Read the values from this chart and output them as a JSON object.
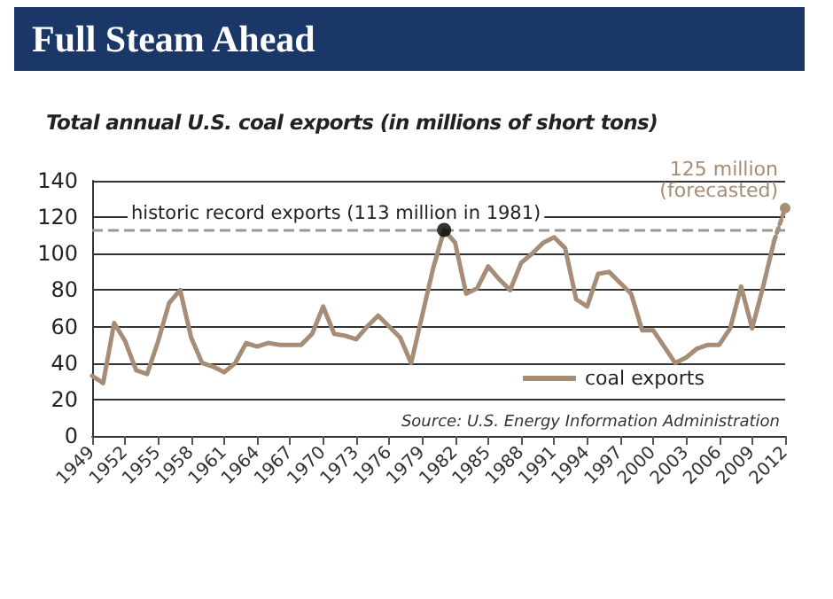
{
  "chart_data": {
    "type": "line",
    "title": "Full Steam Ahead",
    "subtitle": "Total annual U.S. coal exports (in millions of short tons)",
    "x": [
      1949,
      1950,
      1951,
      1952,
      1953,
      1954,
      1955,
      1956,
      1957,
      1958,
      1959,
      1960,
      1961,
      1962,
      1963,
      1964,
      1965,
      1966,
      1967,
      1968,
      1969,
      1970,
      1971,
      1972,
      1973,
      1974,
      1975,
      1976,
      1977,
      1978,
      1979,
      1980,
      1981,
      1982,
      1983,
      1984,
      1985,
      1986,
      1987,
      1988,
      1989,
      1990,
      1991,
      1992,
      1993,
      1994,
      1995,
      1996,
      1997,
      1998,
      1999,
      2000,
      2001,
      2002,
      2003,
      2004,
      2005,
      2006,
      2007,
      2008,
      2009,
      2010,
      2011
    ],
    "series": [
      {
        "name": "coal exports",
        "color": "#a68d77",
        "line_style": "solid",
        "marker": "none",
        "values": [
          33,
          29,
          62,
          52,
          36,
          34,
          52,
          73,
          80,
          54,
          40,
          38,
          35,
          40,
          51,
          49,
          51,
          50,
          50,
          50,
          56,
          71,
          56,
          55,
          53,
          60,
          66,
          60,
          54,
          40,
          66,
          92,
          113,
          106,
          78,
          81,
          93,
          86,
          80,
          95,
          100,
          106,
          109,
          103,
          75,
          71,
          89,
          90,
          84,
          78,
          58,
          58,
          49,
          40,
          43,
          48,
          50,
          50,
          59,
          82,
          59,
          82,
          107
        ]
      },
      {
        "type": "line",
        "color": "#a68d77",
        "line_style": "dotted",
        "marker": "circle",
        "x": [
          2011,
          2012
        ],
        "values": [
          107,
          125
        ]
      },
      {
        "type": "scatter",
        "color": "#000000",
        "marker": "circle",
        "x": [
          1981
        ],
        "values": [
          113
        ]
      }
    ],
    "xlim": [
      1949,
      2012
    ],
    "xticks": [
      1949,
      1952,
      1955,
      1958,
      1961,
      1964,
      1967,
      1970,
      1973,
      1976,
      1979,
      1982,
      1985,
      1988,
      1991,
      1994,
      1997,
      2000,
      2003,
      2006,
      2009,
      2012
    ],
    "ylim": [
      0,
      140
    ],
    "yticks": [
      0,
      20,
      40,
      60,
      80,
      100,
      120,
      140
    ],
    "grid": "y",
    "legend": "bottom right",
    "ref_lines": [
      {
        "axis": "y",
        "value": 113,
        "label": "historic record exports (113 million in 1981)",
        "color": "#999999",
        "line_style": "dashed"
      }
    ],
    "annotations": [
      {
        "text": "125 million\n(forecasted)",
        "x": 2012,
        "y": 125
      },
      "Source: U.S. Energy Information Administration"
    ]
  }
}
